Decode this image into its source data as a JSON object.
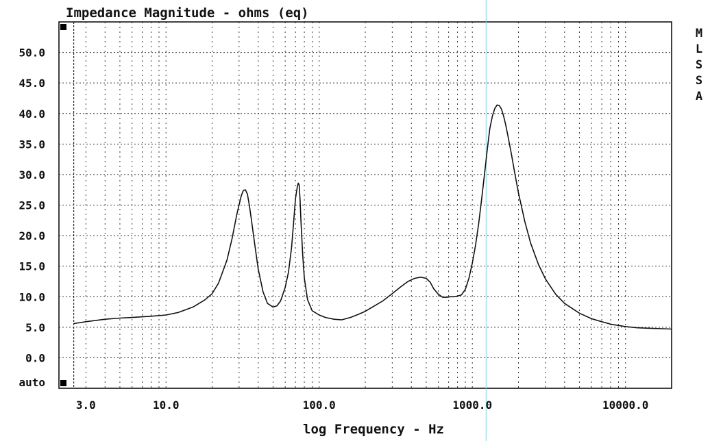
{
  "chart_data": {
    "type": "line",
    "title": "Impedance Magnitude - ohms (eq)",
    "xlabel": "log Frequency - Hz",
    "ylabel": "",
    "x_scale": "log",
    "xlim": [
      2,
      20000
    ],
    "ylim": [
      -5,
      55
    ],
    "y_ticks": [
      {
        "value": 50,
        "label": "50.0"
      },
      {
        "value": 45,
        "label": "45.0"
      },
      {
        "value": 40,
        "label": "40.0"
      },
      {
        "value": 35,
        "label": "35.0"
      },
      {
        "value": 30,
        "label": "30.0"
      },
      {
        "value": 25,
        "label": "25.0"
      },
      {
        "value": 20,
        "label": "20.0"
      },
      {
        "value": 15,
        "label": "15.0"
      },
      {
        "value": 10,
        "label": "10.0"
      },
      {
        "value": 5,
        "label": "5.0"
      },
      {
        "value": 0,
        "label": "0.0"
      },
      {
        "value": -4,
        "label": "auto"
      }
    ],
    "x_ticks": [
      {
        "value": 3,
        "label": "3.0"
      },
      {
        "value": 10,
        "label": "10.0"
      },
      {
        "value": 100,
        "label": "100.0"
      },
      {
        "value": 1000,
        "label": "1000.0"
      },
      {
        "value": 10000,
        "label": "10000.0"
      }
    ],
    "grid": true,
    "side_label": [
      "M",
      "L",
      "S",
      "S",
      "A"
    ],
    "colors": {
      "line": "#111111",
      "grid": "#333333",
      "frame": "#000000",
      "cursor": "#7fd3e6"
    },
    "series": [
      {
        "x": [
          2.5,
          3,
          4,
          5,
          6,
          8,
          10,
          12,
          15,
          18,
          20,
          22,
          25,
          27,
          29,
          31,
          32,
          33,
          34,
          35,
          36,
          38,
          40,
          43,
          46,
          50,
          53,
          56,
          60,
          63,
          66,
          68,
          70,
          72,
          73,
          74,
          75,
          76,
          78,
          80,
          84,
          90,
          100,
          110,
          125,
          140,
          160,
          180,
          200,
          230,
          260,
          300,
          340,
          380,
          420,
          460,
          500,
          530,
          560,
          600,
          640,
          680,
          720,
          760,
          800,
          850,
          900,
          950,
          1000,
          1050,
          1100,
          1150,
          1200,
          1250,
          1300,
          1350,
          1400,
          1450,
          1500,
          1550,
          1600,
          1650,
          1700,
          1800,
          1900,
          2000,
          2200,
          2400,
          2700,
          3000,
          3500,
          4000,
          5000,
          6000,
          7000,
          8000,
          10000,
          12000,
          15000,
          20000
        ],
        "values": [
          5.6,
          5.9,
          6.3,
          6.5,
          6.6,
          6.8,
          7.0,
          7.4,
          8.3,
          9.5,
          10.5,
          12.2,
          16.0,
          19.5,
          23.5,
          26.5,
          27.4,
          27.5,
          26.8,
          25.0,
          22.8,
          18.5,
          14.5,
          10.8,
          8.9,
          8.3,
          8.5,
          9.3,
          11.5,
          14.0,
          18.0,
          22.0,
          26.0,
          28.0,
          28.6,
          28.3,
          26.0,
          22.5,
          17.0,
          13.0,
          9.5,
          7.7,
          7.0,
          6.6,
          6.3,
          6.2,
          6.6,
          7.1,
          7.6,
          8.5,
          9.3,
          10.5,
          11.6,
          12.5,
          13.0,
          13.2,
          13.0,
          12.4,
          11.3,
          10.4,
          9.9,
          9.9,
          10.0,
          10.0,
          10.1,
          10.3,
          11.2,
          13.0,
          15.5,
          18.5,
          22.0,
          26.0,
          30.0,
          34.0,
          37.5,
          39.5,
          40.8,
          41.4,
          41.3,
          40.7,
          39.6,
          38.2,
          36.6,
          33.3,
          30.0,
          27.0,
          22.3,
          18.8,
          15.3,
          12.9,
          10.4,
          8.9,
          7.3,
          6.4,
          5.9,
          5.5,
          5.1,
          4.9,
          4.8,
          4.7
        ]
      }
    ]
  }
}
